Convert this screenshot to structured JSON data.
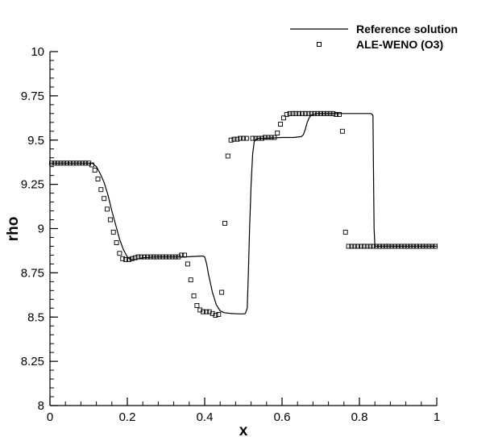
{
  "chart_data": {
    "type": "line",
    "xlabel": "x",
    "ylabel": "rho",
    "xlim": [
      0,
      1
    ],
    "ylim": [
      8,
      10
    ],
    "x_ticks": [
      0,
      0.2,
      0.4,
      0.6,
      0.8,
      1
    ],
    "x_tick_labels": [
      "0",
      "0.2",
      "0.4",
      "0.6",
      "0.8",
      "1"
    ],
    "y_ticks": [
      8,
      8.25,
      8.5,
      8.75,
      9,
      9.25,
      9.5,
      9.75,
      10
    ],
    "y_tick_labels": [
      "8",
      "8.25",
      "8.5",
      "8.75",
      "9",
      "9.25",
      "9.5",
      "9.75",
      "10"
    ],
    "legend_position": "top-right",
    "grid": false,
    "series": [
      {
        "name": "Reference solution",
        "style": "line",
        "color": "#000000",
        "x": [
          0,
          0.1,
          0.11,
          0.12,
          0.13,
          0.14,
          0.15,
          0.16,
          0.17,
          0.18,
          0.19,
          0.2,
          0.205,
          0.21,
          0.22,
          0.24,
          0.27,
          0.3,
          0.35,
          0.395,
          0.4,
          0.405,
          0.41,
          0.42,
          0.43,
          0.44,
          0.45,
          0.47,
          0.49,
          0.5,
          0.505,
          0.51,
          0.513,
          0.516,
          0.52,
          0.524,
          0.528,
          0.533,
          0.54,
          0.55,
          0.6,
          0.63,
          0.65,
          0.655,
          0.66,
          0.665,
          0.67,
          0.675,
          0.68,
          0.69,
          0.75,
          0.8,
          0.83,
          0.835,
          0.836,
          0.838,
          0.84,
          1
        ],
        "y": [
          9.37,
          9.37,
          9.368,
          9.35,
          9.31,
          9.26,
          9.19,
          9.1,
          9.02,
          8.94,
          8.88,
          8.84,
          8.83,
          8.825,
          8.825,
          8.835,
          8.84,
          8.84,
          8.84,
          8.845,
          8.84,
          8.8,
          8.74,
          8.64,
          8.57,
          8.535,
          8.525,
          8.52,
          8.518,
          8.518,
          8.52,
          8.55,
          8.75,
          9.0,
          9.25,
          9.42,
          9.49,
          9.505,
          9.51,
          9.51,
          9.515,
          9.515,
          9.52,
          9.53,
          9.56,
          9.6,
          9.625,
          9.64,
          9.645,
          9.65,
          9.65,
          9.65,
          9.65,
          9.64,
          9.4,
          9.0,
          8.9,
          8.9
        ]
      },
      {
        "name": "ALE-WENO (O3)",
        "style": "square-markers",
        "color": "#000000",
        "x": [
          0.004,
          0.012,
          0.02,
          0.028,
          0.036,
          0.044,
          0.052,
          0.06,
          0.068,
          0.076,
          0.084,
          0.092,
          0.1,
          0.108,
          0.116,
          0.124,
          0.132,
          0.14,
          0.148,
          0.156,
          0.164,
          0.172,
          0.18,
          0.188,
          0.196,
          0.204,
          0.212,
          0.22,
          0.228,
          0.236,
          0.244,
          0.252,
          0.26,
          0.268,
          0.276,
          0.284,
          0.292,
          0.3,
          0.308,
          0.316,
          0.324,
          0.332,
          0.34,
          0.348,
          0.356,
          0.364,
          0.372,
          0.38,
          0.388,
          0.396,
          0.404,
          0.412,
          0.42,
          0.428,
          0.436,
          0.444,
          0.452,
          0.46,
          0.468,
          0.476,
          0.484,
          0.492,
          0.5,
          0.508,
          0.524,
          0.532,
          0.54,
          0.548,
          0.556,
          0.564,
          0.572,
          0.58,
          0.588,
          0.596,
          0.604,
          0.612,
          0.62,
          0.628,
          0.636,
          0.644,
          0.652,
          0.66,
          0.668,
          0.676,
          0.684,
          0.692,
          0.7,
          0.708,
          0.716,
          0.724,
          0.732,
          0.74,
          0.748,
          0.756,
          0.764,
          0.772,
          0.78,
          0.788,
          0.796,
          0.804,
          0.812,
          0.82,
          0.828,
          0.836,
          0.844,
          0.852,
          0.86,
          0.868,
          0.876,
          0.884,
          0.892,
          0.9,
          0.908,
          0.916,
          0.924,
          0.932,
          0.94,
          0.948,
          0.956,
          0.964,
          0.972,
          0.98,
          0.988,
          0.996
        ],
        "y": [
          9.37,
          9.37,
          9.37,
          9.37,
          9.37,
          9.37,
          9.37,
          9.37,
          9.37,
          9.37,
          9.37,
          9.37,
          9.37,
          9.36,
          9.33,
          9.28,
          9.22,
          9.17,
          9.11,
          9.05,
          8.98,
          8.92,
          8.86,
          8.83,
          8.825,
          8.825,
          8.83,
          8.835,
          8.84,
          8.84,
          8.84,
          8.84,
          8.84,
          8.84,
          8.84,
          8.84,
          8.84,
          8.84,
          8.84,
          8.84,
          8.84,
          8.84,
          8.85,
          8.85,
          8.8,
          8.71,
          8.62,
          8.565,
          8.54,
          8.53,
          8.53,
          8.53,
          8.52,
          8.51,
          8.515,
          8.64,
          9.03,
          9.41,
          9.5,
          9.505,
          9.505,
          9.51,
          9.51,
          9.51,
          9.51,
          9.51,
          9.51,
          9.51,
          9.515,
          9.515,
          9.515,
          9.515,
          9.54,
          9.59,
          9.625,
          9.645,
          9.65,
          9.65,
          9.65,
          9.65,
          9.65,
          9.65,
          9.65,
          9.65,
          9.65,
          9.65,
          9.65,
          9.65,
          9.65,
          9.65,
          9.65,
          9.645,
          9.645,
          9.55,
          8.98,
          8.9,
          8.9,
          8.9,
          8.9,
          8.9,
          8.9,
          8.9,
          8.9,
          8.9,
          8.9,
          8.9,
          8.9,
          8.9,
          8.9,
          8.9,
          8.9,
          8.9,
          8.9,
          8.9,
          8.9,
          8.9,
          8.9,
          8.9,
          8.9,
          8.9,
          8.9,
          8.9,
          8.9,
          8.9
        ]
      }
    ]
  }
}
